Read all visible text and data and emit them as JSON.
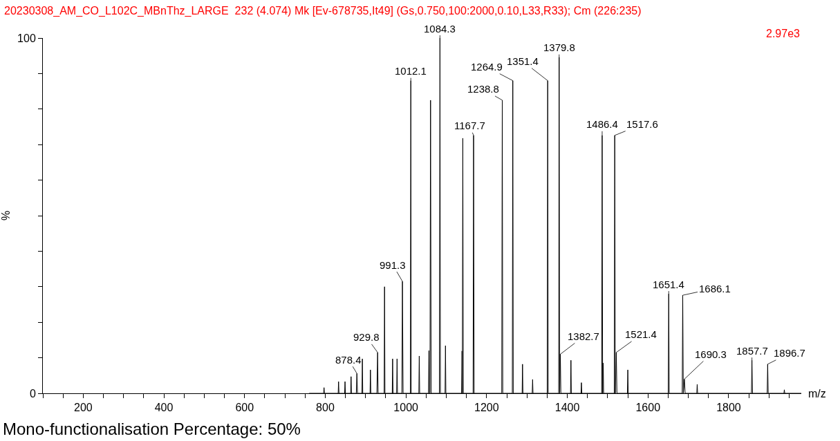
{
  "chart_data": {
    "type": "line",
    "title": "20230308_AM_CO_L102C_MBnThz_LARGE  232 (4.074) Mk [Ev-678735,It49] (Gs,0.750,100:2000,0.10,L33,R33); Cm (226:235)",
    "xlabel": "m/z",
    "ylabel": "%",
    "series": [
      {
        "color": "#000000",
        "x": [
          760,
          796,
          797,
          798,
          832,
          833,
          834,
          848,
          849,
          850,
          863,
          864,
          865,
          877,
          878.4,
          880,
          891,
          892,
          893,
          911,
          912,
          913,
          928,
          929.8,
          931,
          946,
          947,
          948,
          966,
          967,
          968,
          977,
          978,
          979,
          990,
          991.3,
          993,
          1011,
          1012.1,
          1013,
          1032,
          1033,
          1034,
          1056,
          1057,
          1058,
          1059.5,
          1061,
          1062.5,
          1083,
          1084.3,
          1085.5,
          1097,
          1098,
          1099,
          1138,
          1139,
          1139.8,
          1141,
          1142.2,
          1166.5,
          1167.7,
          1169,
          1237.5,
          1238.8,
          1240,
          1263.7,
          1264.9,
          1266,
          1288,
          1289,
          1290,
          1313,
          1314,
          1315,
          1350.2,
          1351.4,
          1352.6,
          1378.6,
          1379.8,
          1381,
          1382.7,
          1384,
          1408,
          1409,
          1410,
          1434,
          1435,
          1436,
          1485.2,
          1486.4,
          1487.6,
          1489,
          1490,
          1516.4,
          1517.6,
          1519,
          1521.4,
          1523,
          1549,
          1550,
          1551,
          1650.2,
          1651.4,
          1652.6,
          1684.9,
          1686.1,
          1687.5,
          1690.3,
          1692,
          1721,
          1722,
          1723,
          1856.5,
          1857.7,
          1859,
          1895.5,
          1896.7,
          1898,
          1937,
          1938,
          1939,
          1980
        ],
        "values": [
          0,
          0,
          1.6,
          0,
          0,
          3.3,
          0,
          0,
          3.3,
          0,
          0,
          4.7,
          0,
          0,
          5.6,
          0,
          0,
          9.7,
          0,
          0,
          6.6,
          0,
          0,
          11.5,
          0,
          0,
          30,
          0,
          0,
          9.7,
          0,
          0,
          9.7,
          0,
          0,
          31.5,
          0,
          0,
          88,
          0,
          0,
          10.5,
          0,
          0,
          12,
          0,
          0,
          82.5,
          0,
          0,
          100,
          0,
          0,
          13.4,
          0,
          0,
          11.9,
          0,
          71.8,
          0,
          0,
          72.6,
          0,
          0,
          82.5,
          0,
          0,
          88,
          0,
          0,
          8.2,
          0,
          0,
          3.9,
          0,
          0,
          88,
          0,
          0,
          94.6,
          0,
          11,
          0,
          0,
          9.3,
          0,
          0,
          3,
          0,
          0,
          72.6,
          0,
          8.5,
          0,
          0,
          72.6,
          0,
          11.5,
          0,
          0,
          6.6,
          0,
          0,
          28,
          0,
          0,
          27.6,
          0,
          4,
          0,
          0,
          2.5,
          0,
          0,
          9.3,
          0,
          0,
          8.2,
          0,
          0,
          1,
          0,
          0
        ]
      }
    ],
    "xlim": [
      100,
      1980
    ],
    "xticks": [
      {
        "value": 100,
        "label": null
      },
      {
        "value": 150,
        "label": null
      },
      200,
      {
        "value": 250,
        "label": null
      },
      {
        "value": 300,
        "label": null
      },
      {
        "value": 350,
        "label": null
      },
      400,
      {
        "value": 450,
        "label": null
      },
      {
        "value": 500,
        "label": null
      },
      {
        "value": 550,
        "label": null
      },
      600,
      {
        "value": 650,
        "label": null
      },
      {
        "value": 700,
        "label": null
      },
      {
        "value": 750,
        "label": null
      },
      800,
      {
        "value": 850,
        "label": null
      },
      {
        "value": 900,
        "label": null
      },
      {
        "value": 950,
        "label": null
      },
      1000,
      {
        "value": 1050,
        "label": null
      },
      {
        "value": 1100,
        "label": null
      },
      {
        "value": 1150,
        "label": null
      },
      1200,
      {
        "value": 1250,
        "label": null
      },
      {
        "value": 1300,
        "label": null
      },
      {
        "value": 1350,
        "label": null
      },
      1400,
      {
        "value": 1450,
        "label": null
      },
      {
        "value": 1500,
        "label": null
      },
      {
        "value": 1550,
        "label": null
      },
      1600,
      {
        "value": 1650,
        "label": null
      },
      {
        "value": 1700,
        "label": null
      },
      {
        "value": 1750,
        "label": null
      },
      1800,
      {
        "value": 1850,
        "label": null
      },
      {
        "value": 1900,
        "label": null
      },
      {
        "value": 1950,
        "label": null
      }
    ],
    "ylim": [
      0,
      100
    ],
    "yticks": [
      0,
      {
        "value": 10,
        "label": null
      },
      {
        "value": 20,
        "label": null
      },
      {
        "value": 30,
        "label": null
      },
      {
        "value": 40,
        "label": null
      },
      {
        "value": 50,
        "label": null
      },
      {
        "value": 60,
        "label": null
      },
      {
        "value": 70,
        "label": null
      },
      {
        "value": 80,
        "label": null
      },
      {
        "value": 90,
        "label": null
      },
      100
    ],
    "grid": false,
    "marker": "none",
    "line_style": "solid",
    "annotations": [
      "2.97e3",
      "Mono-functionalisation Percentage: 50%",
      {
        "text": "878.4",
        "x": 878.4,
        "y": 5.6
      },
      {
        "text": "929.8",
        "x": 929.8,
        "y": 11.5
      },
      {
        "text": "991.3",
        "x": 991.3,
        "y": 31.5
      },
      {
        "text": "1012.1",
        "x": 1012.1,
        "y": 88
      },
      {
        "text": "1084.3",
        "x": 1084.3,
        "y": 100
      },
      {
        "text": "1167.7",
        "x": 1167.7,
        "y": 72.6
      },
      {
        "text": "1238.8",
        "x": 1238.8,
        "y": 82.5
      },
      {
        "text": "1264.9",
        "x": 1264.9,
        "y": 88
      },
      {
        "text": "1351.4",
        "x": 1351.4,
        "y": 88
      },
      {
        "text": "1379.8",
        "x": 1379.8,
        "y": 94.6
      },
      {
        "text": "1382.7",
        "x": 1382.7,
        "y": 11
      },
      {
        "text": "1486.4",
        "x": 1486.4,
        "y": 72.6
      },
      {
        "text": "1517.6",
        "x": 1517.6,
        "y": 72.6
      },
      {
        "text": "1521.4",
        "x": 1521.4,
        "y": 11.5
      },
      {
        "text": "1651.4",
        "x": 1651.4,
        "y": 28
      },
      {
        "text": "1686.1",
        "x": 1686.1,
        "y": 27.6
      },
      {
        "text": "1690.3",
        "x": 1690.3,
        "y": 4
      },
      {
        "text": "1857.7",
        "x": 1857.7,
        "y": 9.3
      },
      {
        "text": "1896.7",
        "x": 1896.7,
        "y": 8.2
      }
    ]
  }
}
